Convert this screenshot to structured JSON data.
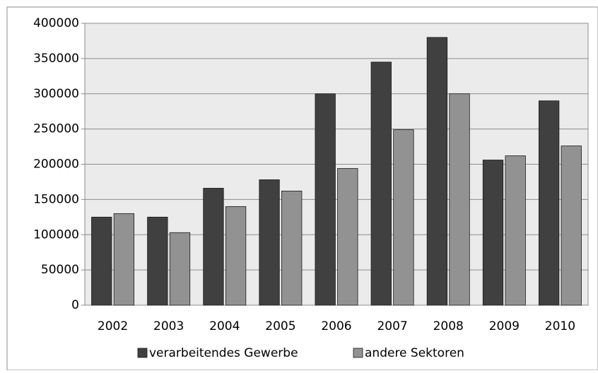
{
  "chart_data": {
    "type": "bar",
    "categories": [
      "2002",
      "2003",
      "2004",
      "2005",
      "2006",
      "2007",
      "2008",
      "2009",
      "2010"
    ],
    "series": [
      {
        "name": "verarbeitendes Gewerbe",
        "color": "#404040",
        "values": [
          125000,
          125000,
          166000,
          178000,
          300000,
          345000,
          380000,
          206000,
          290000
        ]
      },
      {
        "name": "andere Sektoren",
        "color": "#929292",
        "values": [
          130000,
          103000,
          140000,
          162000,
          194000,
          249000,
          300000,
          212000,
          226000
        ]
      }
    ],
    "ylim": [
      0,
      400000
    ],
    "yticks": [
      0,
      50000,
      100000,
      150000,
      200000,
      250000,
      300000,
      350000,
      400000
    ],
    "grid": true,
    "legend": "bottom"
  }
}
